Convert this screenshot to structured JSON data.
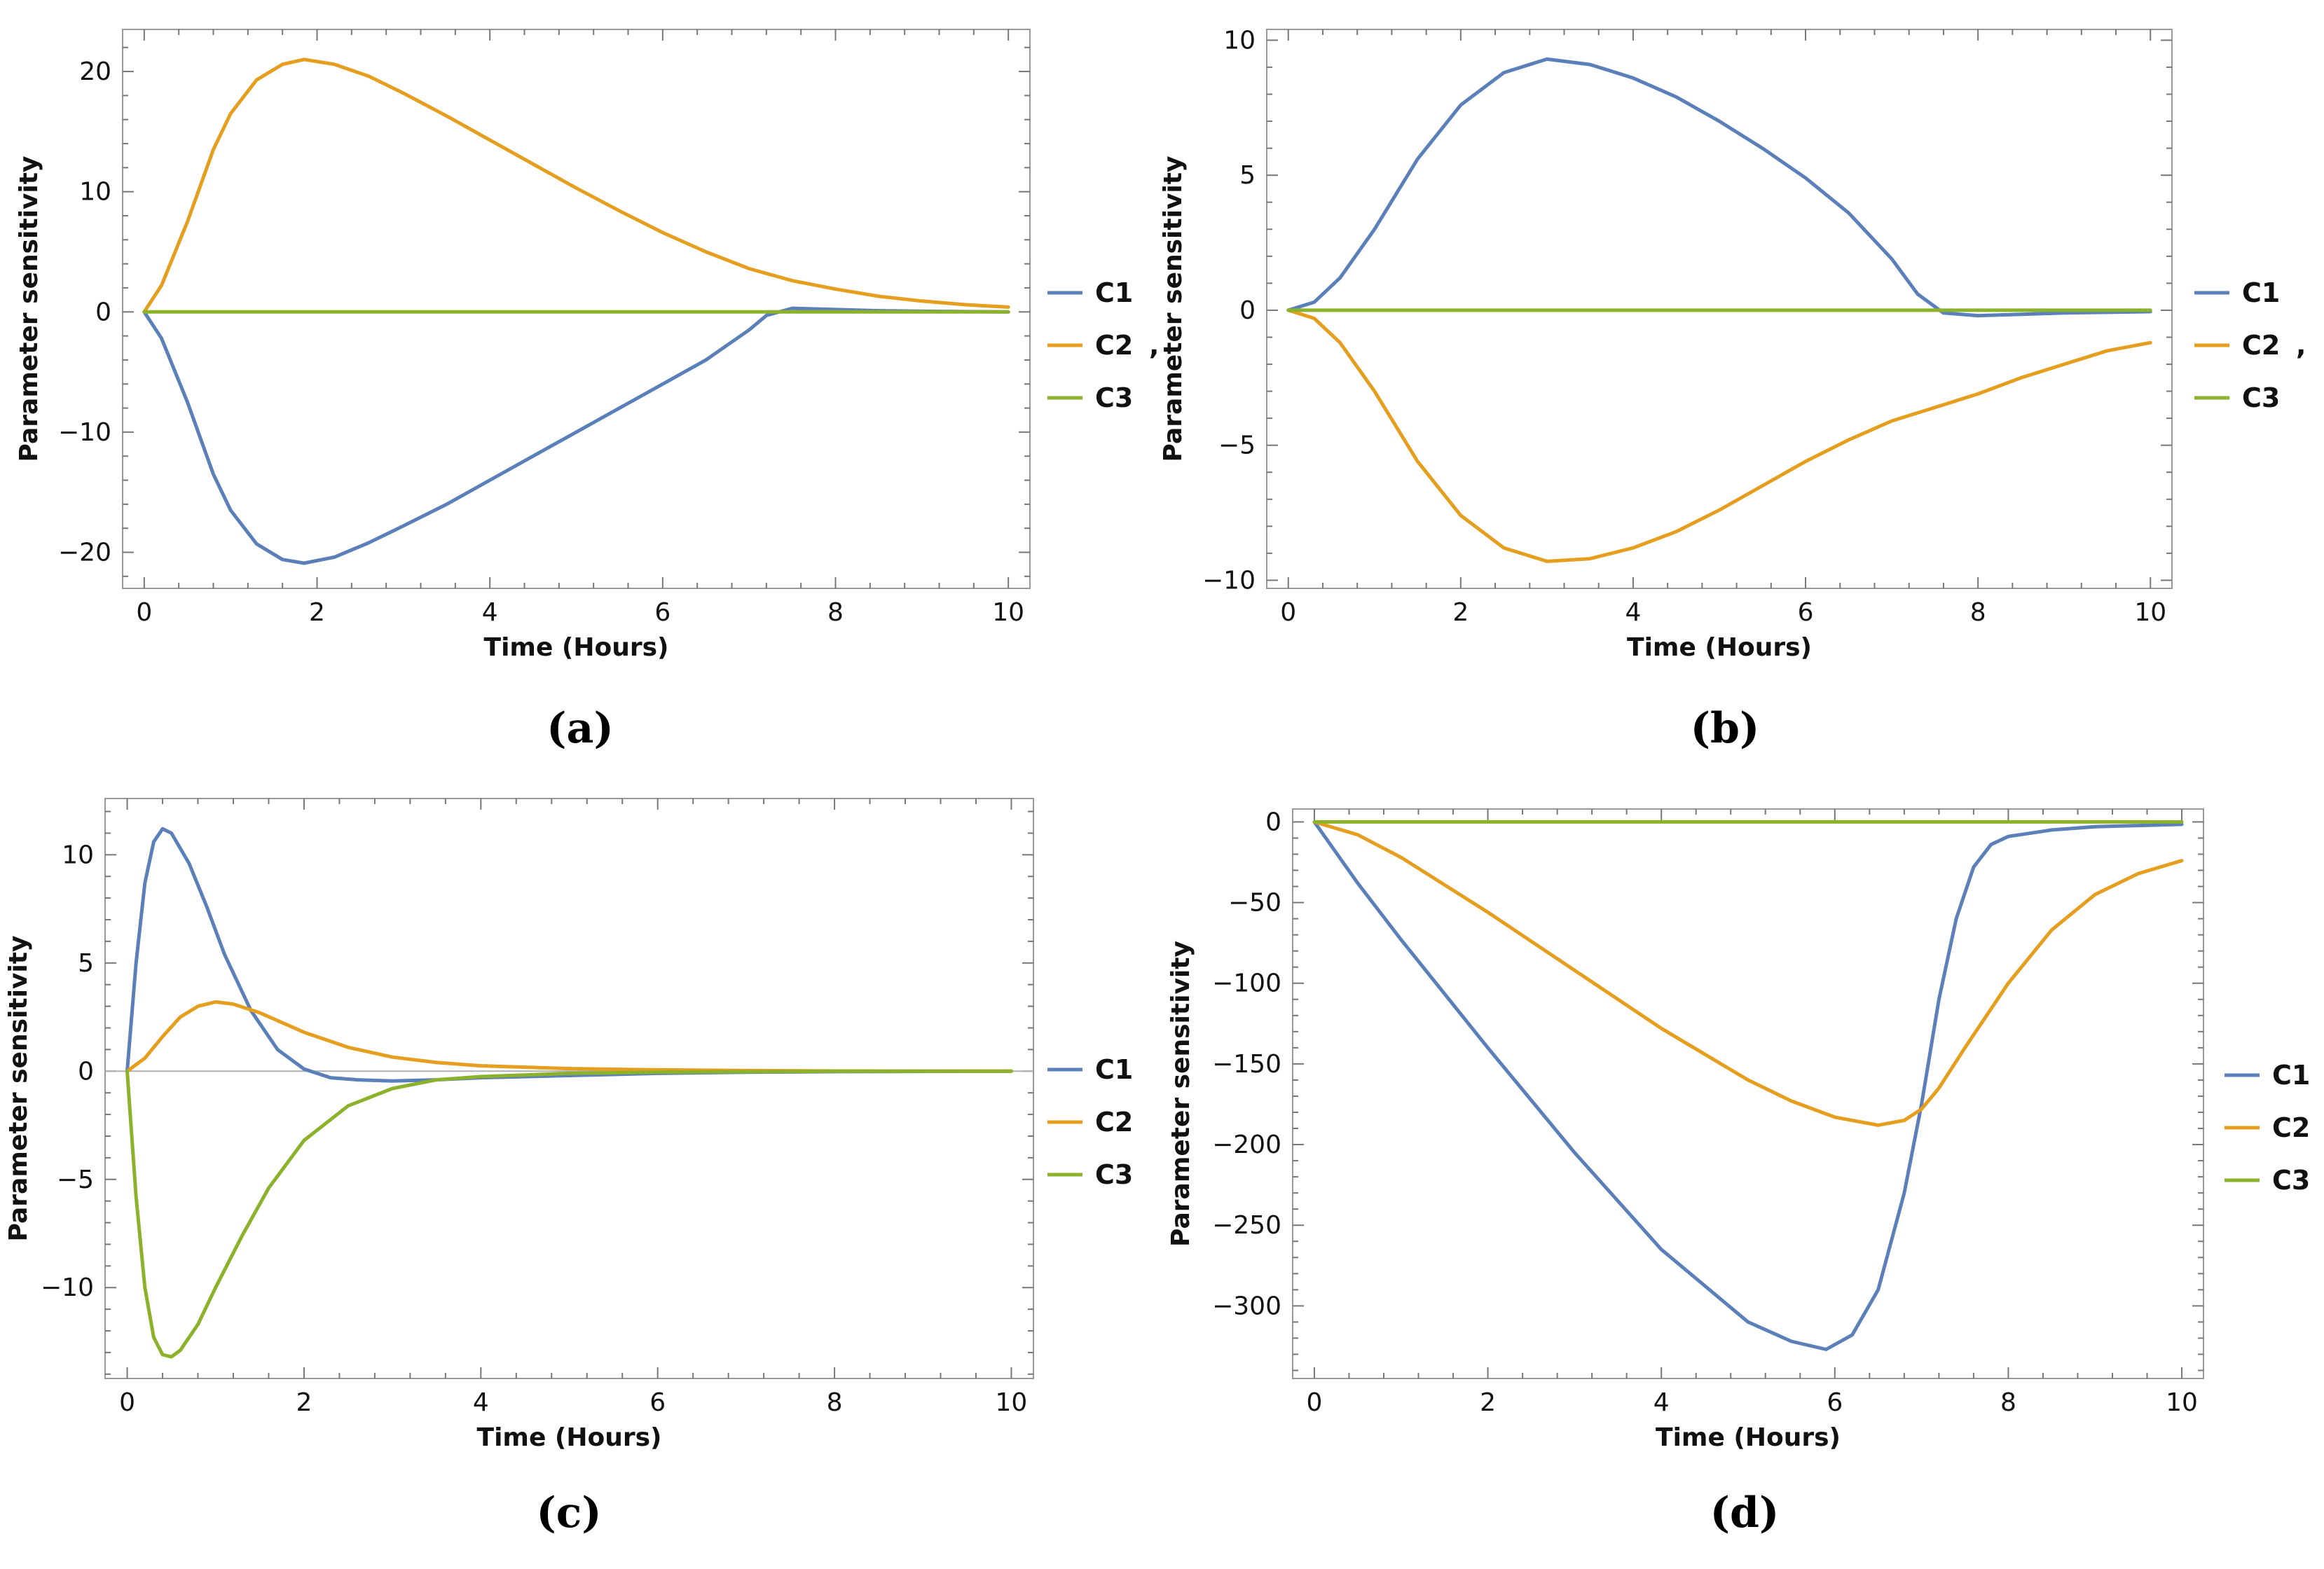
{
  "figure": {
    "panels": [
      {
        "id": "a",
        "caption": "(a)",
        "legend_suffix": ","
      },
      {
        "id": "b",
        "caption": "(b)",
        "legend_suffix": ","
      },
      {
        "id": "c",
        "caption": "(c)",
        "legend_suffix": ""
      },
      {
        "id": "d",
        "caption": "(d)",
        "legend_suffix": ""
      }
    ]
  },
  "colors": {
    "C1": "#5b7fb8",
    "C2": "#e59e1e",
    "C3": "#8bb22a",
    "frame": "#999999",
    "zero_line": "#b0b0b0"
  },
  "chart_data": [
    {
      "type": "line",
      "title": "",
      "xlabel": "Time (Hours)",
      "ylabel": "Parameter sensitivity",
      "xlim": [
        -0.25,
        10.25
      ],
      "ylim": [
        -23,
        23.5
      ],
      "xticks": [
        0,
        2,
        4,
        6,
        8,
        10
      ],
      "yticks": [
        -20,
        -10,
        0,
        10,
        20
      ],
      "zero_line": false,
      "legend_position": "right",
      "series": [
        {
          "name": "C1",
          "color_key": "C1",
          "x": [
            0,
            0.2,
            0.5,
            0.8,
            1.0,
            1.3,
            1.6,
            1.85,
            2.2,
            2.6,
            3.0,
            3.5,
            4.0,
            4.5,
            5.0,
            5.5,
            6.0,
            6.5,
            7.0,
            7.2,
            7.5,
            8.0,
            8.5,
            9.0,
            10.0
          ],
          "y": [
            0,
            -2.2,
            -7.5,
            -13.5,
            -16.5,
            -19.3,
            -20.6,
            -20.9,
            -20.4,
            -19.2,
            -17.8,
            -16.0,
            -14.0,
            -12.0,
            -10.0,
            -8.0,
            -6.0,
            -4.0,
            -1.5,
            -0.3,
            0.3,
            0.2,
            0.1,
            0.05,
            0.0
          ]
        },
        {
          "name": "C2",
          "color_key": "C2",
          "x": [
            0,
            0.2,
            0.5,
            0.8,
            1.0,
            1.3,
            1.6,
            1.85,
            2.2,
            2.6,
            3.0,
            3.5,
            4.0,
            4.5,
            5.0,
            5.5,
            6.0,
            6.5,
            7.0,
            7.5,
            8.0,
            8.5,
            9.0,
            9.5,
            10.0
          ],
          "y": [
            0,
            2.2,
            7.5,
            13.5,
            16.5,
            19.3,
            20.6,
            21.0,
            20.6,
            19.6,
            18.2,
            16.3,
            14.3,
            12.3,
            10.3,
            8.4,
            6.6,
            5.0,
            3.6,
            2.6,
            1.9,
            1.3,
            0.9,
            0.6,
            0.4
          ]
        },
        {
          "name": "C3",
          "color_key": "C3",
          "x": [
            0,
            10
          ],
          "y": [
            0,
            0
          ]
        }
      ]
    },
    {
      "type": "line",
      "title": "",
      "xlabel": "Time (Hours)",
      "ylabel": "Parameter sensitivity",
      "xlim": [
        -0.25,
        10.25
      ],
      "ylim": [
        -10.3,
        10.4
      ],
      "xticks": [
        0,
        2,
        4,
        6,
        8,
        10
      ],
      "yticks": [
        -10,
        -5,
        0,
        5,
        10
      ],
      "zero_line": false,
      "legend_position": "right",
      "series": [
        {
          "name": "C1",
          "color_key": "C1",
          "x": [
            0,
            0.3,
            0.6,
            1.0,
            1.5,
            2.0,
            2.5,
            3.0,
            3.5,
            4.0,
            4.5,
            5.0,
            5.5,
            6.0,
            6.5,
            7.0,
            7.3,
            7.6,
            8.0,
            8.5,
            9.0,
            10.0
          ],
          "y": [
            0,
            0.3,
            1.2,
            3.0,
            5.6,
            7.6,
            8.8,
            9.3,
            9.1,
            8.6,
            7.9,
            7.0,
            6.0,
            4.9,
            3.6,
            1.9,
            0.6,
            -0.1,
            -0.2,
            -0.15,
            -0.1,
            -0.05
          ]
        },
        {
          "name": "C2",
          "color_key": "C2",
          "x": [
            0,
            0.3,
            0.6,
            1.0,
            1.5,
            2.0,
            2.5,
            3.0,
            3.5,
            4.0,
            4.5,
            5.0,
            5.5,
            6.0,
            6.5,
            7.0,
            7.5,
            8.0,
            8.5,
            9.0,
            9.5,
            10.0
          ],
          "y": [
            0,
            -0.3,
            -1.2,
            -3.0,
            -5.6,
            -7.6,
            -8.8,
            -9.3,
            -9.2,
            -8.8,
            -8.2,
            -7.4,
            -6.5,
            -5.6,
            -4.8,
            -4.1,
            -3.6,
            -3.1,
            -2.5,
            -2.0,
            -1.5,
            -1.2
          ]
        },
        {
          "name": "C3",
          "color_key": "C3",
          "x": [
            0,
            10
          ],
          "y": [
            0,
            0
          ]
        }
      ]
    },
    {
      "type": "line",
      "title": "",
      "xlabel": "Time (Hours)",
      "ylabel": "Parameter sensitivity",
      "xlim": [
        -0.25,
        10.25
      ],
      "ylim": [
        -14.2,
        12.6
      ],
      "xticks": [
        0,
        2,
        4,
        6,
        8,
        10
      ],
      "yticks": [
        -10,
        -5,
        0,
        5,
        10
      ],
      "zero_line": true,
      "legend_position": "right",
      "series": [
        {
          "name": "C1",
          "color_key": "C1",
          "x": [
            0,
            0.1,
            0.2,
            0.3,
            0.4,
            0.5,
            0.7,
            0.9,
            1.1,
            1.4,
            1.7,
            2.0,
            2.3,
            2.6,
            3.0,
            3.5,
            4.0,
            5.0,
            6.0,
            7.0,
            8.0,
            10.0
          ],
          "y": [
            0,
            5.0,
            8.7,
            10.6,
            11.2,
            11.0,
            9.6,
            7.6,
            5.4,
            2.8,
            1.0,
            0.1,
            -0.3,
            -0.4,
            -0.45,
            -0.4,
            -0.3,
            -0.2,
            -0.1,
            -0.05,
            -0.02,
            0
          ]
        },
        {
          "name": "C2",
          "color_key": "C2",
          "x": [
            0,
            0.2,
            0.4,
            0.6,
            0.8,
            1.0,
            1.2,
            1.5,
            2.0,
            2.5,
            3.0,
            3.5,
            4.0,
            5.0,
            6.0,
            7.0,
            8.0,
            10.0
          ],
          "y": [
            0,
            0.6,
            1.6,
            2.5,
            3.0,
            3.2,
            3.1,
            2.7,
            1.8,
            1.1,
            0.65,
            0.4,
            0.25,
            0.12,
            0.06,
            0.03,
            0.01,
            0
          ]
        },
        {
          "name": "C3",
          "color_key": "C3",
          "x": [
            0,
            0.1,
            0.2,
            0.3,
            0.4,
            0.5,
            0.6,
            0.8,
            1.0,
            1.3,
            1.6,
            2.0,
            2.5,
            3.0,
            3.5,
            4.0,
            5.0,
            6.0,
            8.0,
            10.0
          ],
          "y": [
            0,
            -5.8,
            -10.0,
            -12.3,
            -13.1,
            -13.2,
            -12.9,
            -11.7,
            -10.0,
            -7.6,
            -5.4,
            -3.2,
            -1.6,
            -0.8,
            -0.4,
            -0.25,
            -0.1,
            -0.05,
            0,
            0
          ]
        }
      ]
    },
    {
      "type": "line",
      "title": "",
      "xlabel": "Time (Hours)",
      "ylabel": "Parameter sensitivity",
      "xlim": [
        -0.25,
        10.25
      ],
      "ylim": [
        -345,
        8
      ],
      "xticks": [
        0,
        2,
        4,
        6,
        8,
        10
      ],
      "yticks": [
        -300,
        -250,
        -200,
        -150,
        -100,
        -50,
        0
      ],
      "zero_line": false,
      "legend_position": "right",
      "series": [
        {
          "name": "C1",
          "color_key": "C1",
          "x": [
            0,
            0.5,
            1.0,
            2.0,
            3.0,
            4.0,
            5.0,
            5.5,
            5.9,
            6.2,
            6.5,
            6.8,
            7.0,
            7.2,
            7.4,
            7.6,
            7.8,
            8.0,
            8.5,
            9.0,
            10.0
          ],
          "y": [
            0,
            -38,
            -73,
            -140,
            -205,
            -265,
            -310,
            -322,
            -327,
            -318,
            -290,
            -230,
            -175,
            -110,
            -60,
            -28,
            -14,
            -9,
            -5,
            -3,
            -1.5
          ]
        },
        {
          "name": "C2",
          "color_key": "C2",
          "x": [
            0,
            0.5,
            1.0,
            2.0,
            3.0,
            4.0,
            5.0,
            5.5,
            6.0,
            6.5,
            6.8,
            7.0,
            7.2,
            7.5,
            8.0,
            8.5,
            9.0,
            9.5,
            10.0
          ],
          "y": [
            0,
            -8,
            -22,
            -56,
            -92,
            -128,
            -160,
            -173,
            -183,
            -188,
            -185,
            -178,
            -165,
            -140,
            -100,
            -67,
            -45,
            -32,
            -24
          ]
        },
        {
          "name": "C3",
          "color_key": "C3",
          "x": [
            0,
            10
          ],
          "y": [
            0,
            0
          ]
        }
      ]
    }
  ]
}
